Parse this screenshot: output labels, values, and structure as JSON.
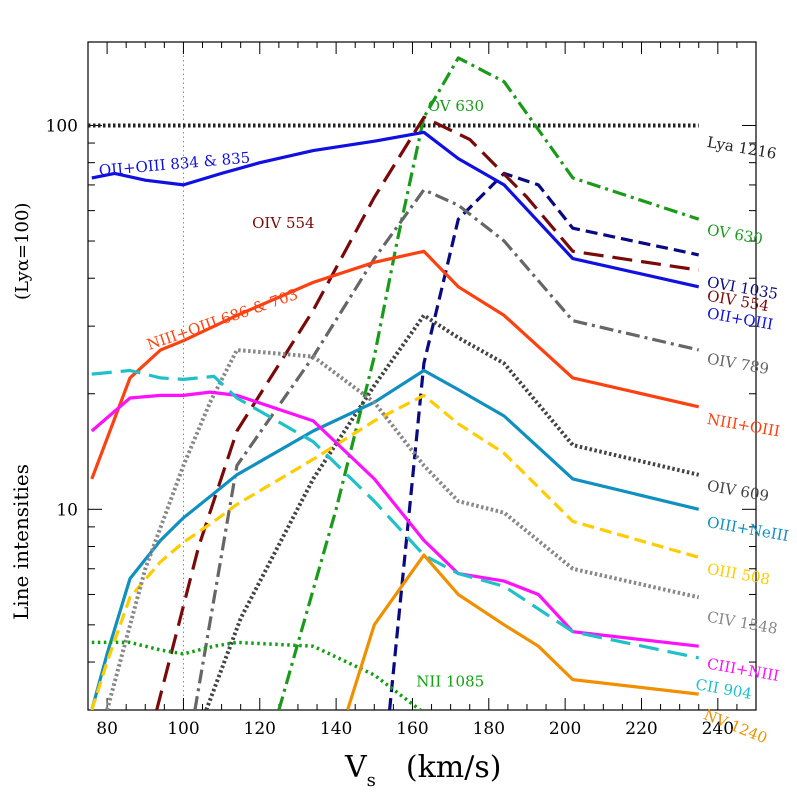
{
  "chart_data": {
    "type": "line",
    "title": "",
    "xlabel_main": "V",
    "xlabel_sub": "s",
    "xlabel_units": "(km/s)",
    "ylabel_main": "Line intensities",
    "ylabel_norm": "(Lyα=100)",
    "xlim": [
      75,
      250
    ],
    "ylim": [
      3,
      165
    ],
    "yscale": "log",
    "x_ticks": [
      80,
      100,
      120,
      140,
      160,
      180,
      200,
      220,
      240
    ],
    "y_ticks": [
      10,
      100
    ],
    "ref_vline_x": 100,
    "series": [
      {
        "name": "Lya 1216",
        "color": "#222222",
        "style": "dotted-heavy",
        "x": [
          75,
          235
        ],
        "y": [
          100,
          100
        ]
      },
      {
        "name": "OV 630",
        "color": "#1a9a1a",
        "style": "dashdot",
        "x": [
          125,
          140,
          150,
          156,
          163,
          172,
          184,
          202,
          235
        ],
        "y": [
          3,
          10,
          25,
          50,
          105,
          150,
          130,
          73,
          57
        ]
      },
      {
        "name": "OVI 1035",
        "color": "#0a0a80",
        "style": "dash",
        "x": [
          154,
          160,
          163,
          172,
          184,
          193,
          202,
          235
        ],
        "y": [
          3,
          12,
          24,
          57,
          75,
          70,
          54,
          46
        ]
      },
      {
        "name": "OIV 554",
        "color": "#7a0a0a",
        "style": "longdash",
        "x": [
          93,
          104,
          114,
          134,
          150,
          163,
          175,
          190,
          202,
          235
        ],
        "y": [
          3,
          8,
          16,
          33,
          65,
          105,
          92,
          65,
          47,
          42
        ]
      },
      {
        "name": "OII+OIII",
        "color": "#1010e0",
        "style": "solid",
        "x": [
          76,
          82,
          90,
          100,
          110,
          120,
          134,
          150,
          163,
          172,
          184,
          202,
          235
        ],
        "y": [
          73,
          75,
          72,
          70,
          75,
          80,
          86,
          91,
          96,
          82,
          70,
          45,
          38
        ]
      },
      {
        "name": "OIV 789",
        "color": "#666666",
        "style": "dashdot",
        "x": [
          103,
          114,
          134,
          150,
          163,
          172,
          184,
          202,
          235
        ],
        "y": [
          3,
          13,
          25,
          45,
          68,
          62,
          50,
          31,
          26
        ]
      },
      {
        "name": "NIII+OIII",
        "color": "#ff4010",
        "style": "solid",
        "x": [
          76,
          86,
          94,
          100,
          114,
          134,
          150,
          163,
          172,
          184,
          202,
          235
        ],
        "y": [
          12,
          22,
          26,
          27.5,
          32,
          39,
          44,
          47,
          38,
          32,
          22,
          18.5
        ]
      },
      {
        "name": "OIV 609",
        "color": "#444444",
        "style": "dotted-heavy",
        "x": [
          106,
          115,
          134,
          150,
          163,
          172,
          184,
          202,
          235
        ],
        "y": [
          3,
          5.2,
          12,
          21,
          32,
          28,
          24,
          14.7,
          12.3
        ]
      },
      {
        "name": "OIII+NeIII",
        "color": "#1090c0",
        "style": "solid",
        "x": [
          76,
          80,
          86,
          94,
          100,
          108,
          114,
          134,
          150,
          163,
          172,
          184,
          202,
          235
        ],
        "y": [
          3,
          4.2,
          6.6,
          8.3,
          9.5,
          11,
          12.3,
          16,
          19,
          23,
          20.5,
          17.5,
          12,
          10
        ]
      },
      {
        "name": "OIII 508",
        "color": "#ffcc00",
        "style": "dash",
        "x": [
          76,
          80,
          86,
          94,
          100,
          108,
          114,
          134,
          150,
          163,
          172,
          184,
          202,
          235
        ],
        "y": [
          3,
          4,
          5.9,
          7.3,
          8.2,
          9.3,
          10.3,
          13.5,
          17,
          19.8,
          16.7,
          14,
          9.3,
          7.5
        ]
      },
      {
        "name": "CIV 1548",
        "color": "#888888",
        "style": "dotted-heavy",
        "x": [
          80,
          90,
          100,
          107,
          114,
          134,
          150,
          163,
          172,
          184,
          202,
          235
        ],
        "y": [
          3,
          7,
          13,
          19,
          26,
          25,
          19,
          13,
          10.5,
          9.8,
          7,
          5.9
        ]
      },
      {
        "name": "CIII+NIII",
        "color": "#ff10ff",
        "style": "solid",
        "x": [
          76,
          86,
          94,
          100,
          107,
          114,
          134,
          150,
          163,
          172,
          184,
          193,
          202,
          235
        ],
        "y": [
          16,
          19.5,
          19.8,
          19.8,
          20.2,
          19.8,
          17,
          12,
          8.3,
          6.8,
          6.5,
          6,
          4.8,
          4.4
        ]
      },
      {
        "name": "CII 904",
        "color": "#20c0c8",
        "style": "longdash",
        "x": [
          76,
          86,
          94,
          100,
          108,
          114,
          134,
          150,
          163,
          172,
          184,
          202,
          235
        ],
        "y": [
          22.5,
          23,
          22,
          21.8,
          22.2,
          19.5,
          15,
          10.5,
          7.6,
          6.8,
          6.3,
          4.8,
          4.1
        ]
      },
      {
        "name": "NII 1085",
        "color": "#10a010",
        "style": "dotted",
        "x": [
          76,
          86,
          94,
          100,
          108,
          114,
          134,
          150,
          163
        ],
        "y": [
          4.5,
          4.5,
          4.3,
          4.2,
          4.4,
          4.5,
          4.4,
          3.7,
          2.95
        ]
      },
      {
        "name": "NV 1240",
        "color": "#f09000",
        "style": "solid",
        "x": [
          143,
          150,
          163,
          172,
          184,
          193,
          202,
          235
        ],
        "y": [
          3,
          5,
          7.6,
          6,
          5,
          4.4,
          3.6,
          3.3
        ]
      }
    ],
    "labels": [
      {
        "series": "OII+OIII",
        "text": "OII+OIII  834 & 835",
        "x": 78,
        "y": 74,
        "angle": -5
      },
      {
        "series": "NIII+OIII",
        "text": "NIII+OIII  686 & 703",
        "x": 91,
        "y": 26,
        "angle": -19
      },
      {
        "series": "OIV 554",
        "text": "OIV  554",
        "x": 118,
        "y": 54,
        "angle": 0
      },
      {
        "series": "OV 630",
        "text": "OV  630",
        "x": 164,
        "y": 109,
        "angle": 0
      },
      {
        "series": "Lya 1216",
        "text": "Lya 1216",
        "x": 237,
        "y": 88,
        "angle": 10
      },
      {
        "series": "OV 630",
        "text": "OV 630",
        "x": 237,
        "y": 52,
        "angle": 10
      },
      {
        "series": "OVI 1035",
        "text": "OVI 1035",
        "x": 237,
        "y": 38,
        "angle": 10
      },
      {
        "series": "OIV 554",
        "text": "OIV 554",
        "x": 237,
        "y": 35,
        "angle": 10
      },
      {
        "series": "OII+OIII",
        "text": "OII+OIII",
        "x": 237,
        "y": 31.5,
        "angle": 10
      },
      {
        "series": "OIV 789",
        "text": "OIV 789",
        "x": 237,
        "y": 24,
        "angle": 10
      },
      {
        "series": "NIII+OIII",
        "text": "NIII+OIII",
        "x": 237,
        "y": 16.7,
        "angle": 10
      },
      {
        "series": "OIV 609",
        "text": "OIV 609",
        "x": 237,
        "y": 11.2,
        "angle": 10
      },
      {
        "series": "OIII+NeIII",
        "text": "OIII+NeIII",
        "x": 237,
        "y": 9,
        "angle": 10
      },
      {
        "series": "OIII 508",
        "text": "OIII 508",
        "x": 237,
        "y": 6.8,
        "angle": 10
      },
      {
        "series": "CIV 1548",
        "text": "CIV 1548",
        "x": 237,
        "y": 5.1,
        "angle": 10
      },
      {
        "series": "CIII+NIII",
        "text": "CIII+NIII",
        "x": 237,
        "y": 3.85,
        "angle": 10
      },
      {
        "series": "CII 904",
        "text": "CII 904",
        "x": 234,
        "y": 3.4,
        "angle": 10
      },
      {
        "series": "NII 1085",
        "text": "NII 1085",
        "x": 161,
        "y": 3.45,
        "angle": 0
      },
      {
        "series": "NV 1240",
        "text": "NV 1240",
        "x": 236,
        "y": 2.85,
        "angle": 22
      }
    ]
  }
}
